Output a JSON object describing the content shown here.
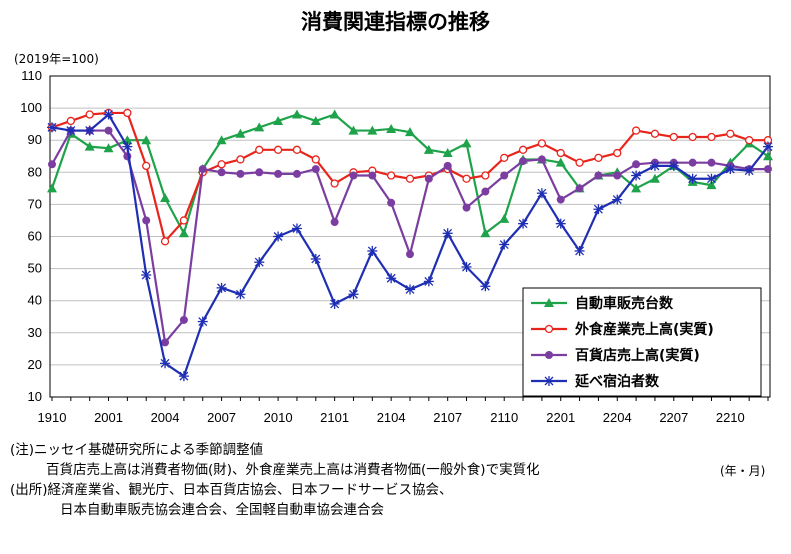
{
  "chart_data": {
    "type": "line",
    "title": "消費関連指標の推移",
    "unit_label": "(2019年=100)",
    "x_unit_label": "(年・月)",
    "yticks": [
      "10",
      "20",
      "30",
      "40",
      "50",
      "60",
      "70",
      "80",
      "90",
      "100",
      "110"
    ],
    "ylim": [
      10,
      110
    ],
    "xtick_labels": [
      "1910",
      "2001",
      "2004",
      "2007",
      "2010",
      "2101",
      "2104",
      "2107",
      "2110",
      "2201",
      "2204",
      "2207",
      "2210"
    ],
    "x": [
      "1910",
      "1911",
      "1912",
      "2001",
      "2002",
      "2003",
      "2004",
      "2005",
      "2006",
      "2007",
      "2008",
      "2009",
      "2010",
      "2011",
      "2012",
      "2101",
      "2102",
      "2103",
      "2104",
      "2105",
      "2106",
      "2107",
      "2108",
      "2109",
      "2110",
      "2111",
      "2112",
      "2201",
      "2202",
      "2203",
      "2204",
      "2205",
      "2206",
      "2207",
      "2208",
      "2209",
      "2210",
      "2211",
      "2212"
    ],
    "grid": true,
    "legend_position": "bottom-right",
    "series": [
      {
        "name": "自動車販売台数",
        "color": "#1fa34a",
        "marker": "triangle",
        "values": [
          75,
          92,
          88,
          87.5,
          90,
          90,
          72,
          61,
          81,
          90,
          92,
          94,
          96,
          98,
          96,
          98,
          93,
          93,
          93.5,
          92.5,
          87,
          86,
          89,
          61,
          65.5,
          84,
          84,
          83,
          75,
          79,
          80,
          75,
          78,
          82,
          77,
          76,
          83,
          89,
          85
        ]
      },
      {
        "name": "外食産業売上高(実質)",
        "color": "#e8251c",
        "marker": "circle-open",
        "values": [
          94,
          96,
          98,
          98.5,
          98.5,
          82,
          58.5,
          65,
          80,
          82.5,
          84,
          87,
          87,
          87,
          84,
          76.5,
          80,
          80.5,
          79,
          78,
          79,
          81,
          78,
          79,
          84.5,
          87,
          89,
          86,
          83,
          84.5,
          86,
          93,
          92,
          91,
          91,
          91,
          92,
          90,
          90
        ]
      },
      {
        "name": "百貨店売上高(実質)",
        "color": "#7b3ea0",
        "marker": "circle",
        "values": [
          82.5,
          93,
          93,
          93,
          85,
          65,
          27,
          34,
          81,
          80,
          79.5,
          80,
          79.5,
          79.5,
          81,
          64.5,
          79,
          79,
          70.5,
          54.5,
          78,
          82,
          69,
          74,
          79,
          83.5,
          84,
          71.5,
          75,
          79,
          79,
          82.5,
          83,
          83,
          83,
          83,
          82,
          81,
          81
        ]
      },
      {
        "name": "延べ宿泊者数",
        "color": "#1f2fb4",
        "marker": "star",
        "values": [
          94,
          93,
          93,
          98,
          88,
          48,
          20.5,
          16.5,
          33.5,
          44,
          42,
          52,
          60,
          62.5,
          53,
          39,
          42,
          55.5,
          47,
          43.5,
          46,
          61,
          50.5,
          44.5,
          57.5,
          64,
          73.5,
          64,
          55.5,
          68.5,
          71.5,
          79,
          82,
          82,
          78,
          78,
          81,
          80.5,
          88
        ]
      }
    ]
  },
  "notes": {
    "line1": "(注)ニッセイ基礎研究所による季節調整値",
    "line2": "百貨店売上高は消費者物価(財)、外食産業売上高は消費者物価(一般外食)で実質化",
    "line3": "(出所)経済産業省、観光庁、日本百貨店協会、日本フードサービス協会、",
    "line4": "日本自動車販売協会連合会、全国軽自動車協会連合会"
  }
}
